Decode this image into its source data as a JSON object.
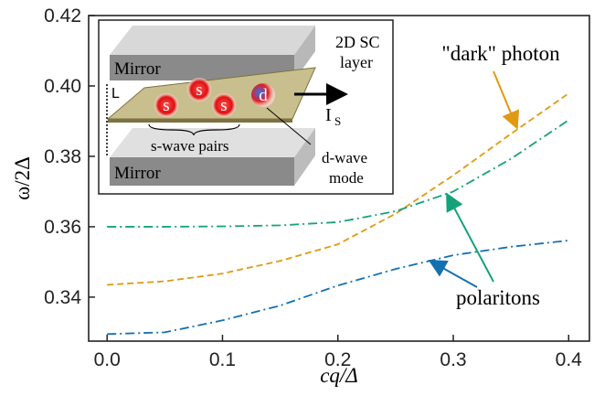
{
  "chart_data": {
    "type": "line",
    "x_label": "cq/Δ",
    "y_label": "ω/2Δ",
    "x": [
      0,
      0.05,
      0.1,
      0.15,
      0.2,
      0.25,
      0.3,
      0.35,
      0.4
    ],
    "series": [
      {
        "color": "#e09a10",
        "style": "dashed",
        "values": [
          0.3435,
          0.3445,
          0.3467,
          0.3503,
          0.355,
          0.3637,
          0.3746,
          0.3864,
          0.3979
        ]
      },
      {
        "color": "#14a27a",
        "style": "dashdot",
        "values": [
          0.36,
          0.36,
          0.3601,
          0.3604,
          0.3613,
          0.3644,
          0.37,
          0.3793,
          0.3903
        ]
      },
      {
        "color": "#1470b0",
        "style": "dashdot",
        "values": [
          0.3295,
          0.33,
          0.3334,
          0.3376,
          0.3433,
          0.348,
          0.3519,
          0.3543,
          0.3561
        ]
      }
    ],
    "xlim": [
      -0.016,
      0.418
    ],
    "ylim": [
      0.3275,
      0.42
    ],
    "xticks": [
      {
        "value": 0,
        "label": "0.0"
      },
      0.1,
      0.2,
      0.3,
      0.4
    ],
    "yticks": [
      0.34,
      0.36,
      0.38,
      {
        "value": 0.4,
        "label": "0.40"
      },
      0.42
    ],
    "annotations": [
      {
        "text": "\"dark\" photon"
      },
      {
        "text": "polaritons"
      }
    ]
  },
  "inset": {
    "mirror_top": "Mirror",
    "mirror_bottom": "Mirror",
    "layer": [
      "2D SC",
      "layer"
    ],
    "gap": "L",
    "pairs": [
      "s",
      "s",
      "s"
    ],
    "mode": "d",
    "current": "I",
    "current_sub": "S",
    "pairs_label": "s-wave pairs",
    "mode_label": [
      "d-wave",
      "mode"
    ]
  }
}
